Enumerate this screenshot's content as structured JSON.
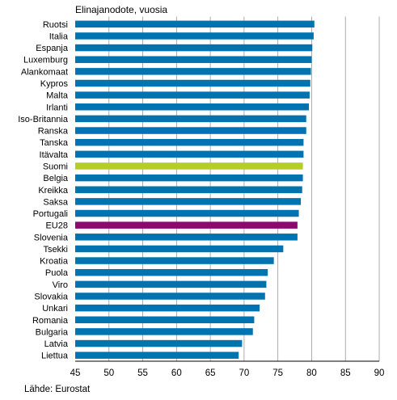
{
  "chart_data": {
    "type": "bar",
    "orientation": "horizontal",
    "title": "Elinajanodote, vuosia",
    "source": "Lähde: Eurostat",
    "xlim": [
      45,
      90
    ],
    "xticks": [
      45,
      50,
      55,
      60,
      65,
      70,
      75,
      80,
      85,
      90
    ],
    "grid": true,
    "categories": [
      "Ruotsi",
      "Italia",
      "Espanja",
      "Luxemburg",
      "Alankomaat",
      "Kypros",
      "Malta",
      "Irlanti",
      "Iso-Britannia",
      "Ranska",
      "Tanska",
      "Itävalta",
      "Suomi",
      "Belgia",
      "Kreikka",
      "Saksa",
      "Portugali",
      "EU28",
      "Slovenia",
      "Tsekki",
      "Kroatia",
      "Puola",
      "Viro",
      "Slovakia",
      "Unkari",
      "Romania",
      "Bulgaria",
      "Latvia",
      "Liettua"
    ],
    "values": [
      80.4,
      80.3,
      80.1,
      80.0,
      79.9,
      79.8,
      79.7,
      79.6,
      79.2,
      79.2,
      78.8,
      78.8,
      78.7,
      78.7,
      78.6,
      78.4,
      78.1,
      77.9,
      77.9,
      75.8,
      74.4,
      73.5,
      73.3,
      73.1,
      72.3,
      71.5,
      71.3,
      69.7,
      69.2
    ],
    "colors": {
      "default": "#0073b0",
      "Suomi": "#b4cd28",
      "EU28": "#8c0a6e",
      "grid": "#999999"
    }
  }
}
